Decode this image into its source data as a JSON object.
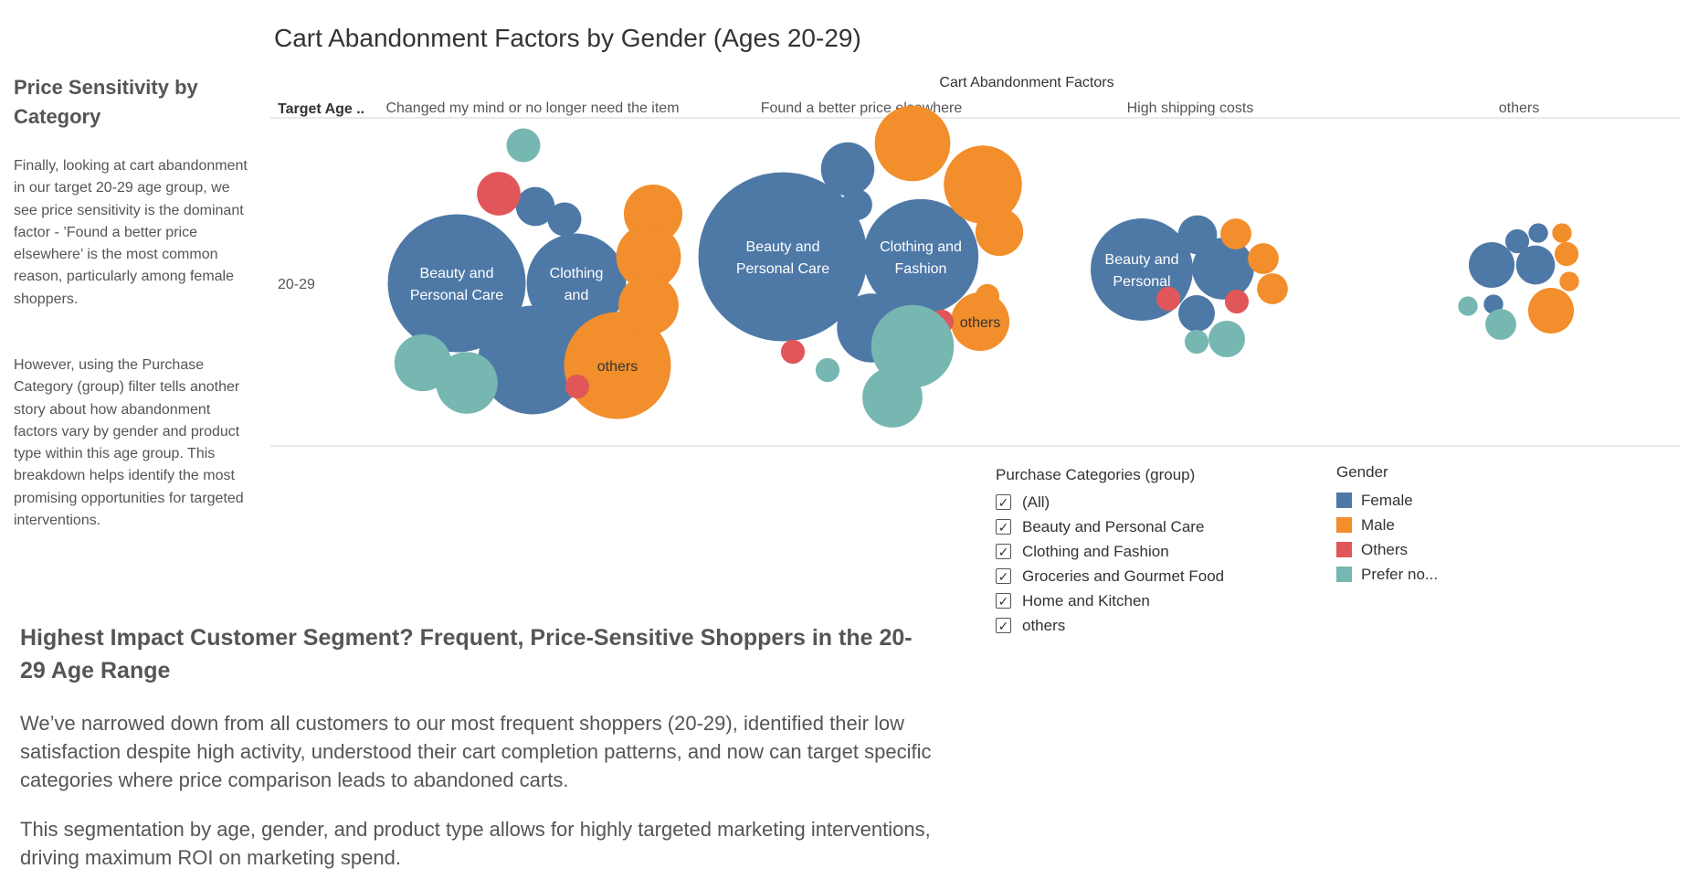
{
  "left_panel": {
    "title": "Price Sensitivity by Category",
    "paragraph1": "Finally, looking at cart abandonment in our target 20-29 age group, we see price sensitivity is the dominant factor - ’Found a better price elsewhere’ is the most common reason, particularly among female shoppers.",
    "paragraph2": "However, using the Purchase Category (group)  filter tells another story about how abandonment factors vary by gender and product type within this age group. This breakdown helps identify the most promising opportunities for targeted interventions."
  },
  "bottom": {
    "heading": "Highest Impact Customer Segment? Frequent, Price-Sensitive Shoppers in the 20-29 Age Range",
    "paragraph1": "We’ve narrowed down from all customers to our most frequent shoppers (20-29), identified their low satisfaction despite high activity, understood their cart completion patterns, and now can target specific categories where price comparison leads to abandoned carts.",
    "paragraph2": "This segmentation by age, gender, and product type allows for highly targeted marketing interventions, driving maximum ROI on marketing spend."
  },
  "filter": {
    "title": "Purchase Categories (group)",
    "items": [
      {
        "label": "(All)",
        "checked": true
      },
      {
        "label": "Beauty and Personal Care",
        "checked": true
      },
      {
        "label": "Clothing and Fashion",
        "checked": true
      },
      {
        "label": "Groceries and Gourmet Food",
        "checked": true
      },
      {
        "label": "Home and Kitchen",
        "checked": true
      },
      {
        "label": "others",
        "checked": true
      }
    ]
  },
  "gender_legend": {
    "title": "Gender",
    "items": [
      {
        "label": "Female",
        "color": "#4e79a7"
      },
      {
        "label": "Male",
        "color": "#f28e2b"
      },
      {
        "label": "Others",
        "color": "#e15759"
      },
      {
        "label": "Prefer no...",
        "color": "#76b7b2"
      }
    ]
  },
  "chart_data": {
    "type": "packed-bubble",
    "title": "Cart Abandonment Factors by Gender (Ages 20-29)",
    "column_header": "Cart Abandonment Factors",
    "row_header": "Target Age ..",
    "row_label": "20-29",
    "colors": {
      "female": "#4e79a7",
      "male": "#f28e2b",
      "others": "#e15759",
      "prefer_not": "#76b7b2"
    },
    "factors": [
      {
        "name": "Changed my mind or no longer need the item",
        "bubbles": [
          {
            "gender": "female",
            "value": 100,
            "label": "Beauty and Personal Care"
          },
          {
            "gender": "female",
            "value": 52,
            "label": "Clothing and"
          },
          {
            "gender": "female",
            "value": 62,
            "label": ""
          },
          {
            "gender": "female",
            "value": 8,
            "label": ""
          },
          {
            "gender": "female",
            "value": 6,
            "label": ""
          },
          {
            "gender": "male",
            "value": 60,
            "label": "others"
          },
          {
            "gender": "male",
            "value": 18,
            "label": ""
          },
          {
            "gender": "male",
            "value": 22,
            "label": ""
          },
          {
            "gender": "male",
            "value": 19,
            "label": ""
          },
          {
            "gender": "others",
            "value": 10,
            "label": ""
          },
          {
            "gender": "others",
            "value": 3,
            "label": ""
          },
          {
            "gender": "prefer_not",
            "value": 17,
            "label": ""
          },
          {
            "gender": "prefer_not",
            "value": 20,
            "label": ""
          },
          {
            "gender": "prefer_not",
            "value": 6,
            "label": ""
          }
        ]
      },
      {
        "name": "Found a better price elsewhere",
        "bubbles": [
          {
            "gender": "female",
            "value": 150,
            "label": "Beauty and Personal Care"
          },
          {
            "gender": "female",
            "value": 70,
            "label": "Clothing and Fashion"
          },
          {
            "gender": "female",
            "value": 25,
            "label": ""
          },
          {
            "gender": "female",
            "value": 15,
            "label": ""
          },
          {
            "gender": "female",
            "value": 5,
            "label": ""
          },
          {
            "gender": "male",
            "value": 30,
            "label": ""
          },
          {
            "gender": "male",
            "value": 32,
            "label": ""
          },
          {
            "gender": "male",
            "value": 12,
            "label": ""
          },
          {
            "gender": "male",
            "value": 18,
            "label": "others"
          },
          {
            "gender": "male",
            "value": 3,
            "label": ""
          },
          {
            "gender": "others",
            "value": 3,
            "label": ""
          },
          {
            "gender": "others",
            "value": 3,
            "label": ""
          },
          {
            "gender": "others",
            "value": 3,
            "label": ""
          },
          {
            "gender": "prefer_not",
            "value": 36,
            "label": ""
          },
          {
            "gender": "prefer_not",
            "value": 19,
            "label": ""
          },
          {
            "gender": "prefer_not",
            "value": 3,
            "label": ""
          }
        ]
      },
      {
        "name": "High shipping costs",
        "bubbles": [
          {
            "gender": "female",
            "value": 55,
            "label": "Beauty and Personal"
          },
          {
            "gender": "female",
            "value": 20,
            "label": ""
          },
          {
            "gender": "female",
            "value": 8,
            "label": ""
          },
          {
            "gender": "female",
            "value": 7,
            "label": ""
          },
          {
            "gender": "male",
            "value": 5,
            "label": ""
          },
          {
            "gender": "male",
            "value": 5,
            "label": ""
          },
          {
            "gender": "male",
            "value": 5,
            "label": ""
          },
          {
            "gender": "others",
            "value": 3,
            "label": ""
          },
          {
            "gender": "others",
            "value": 3,
            "label": ""
          },
          {
            "gender": "prefer_not",
            "value": 7,
            "label": ""
          },
          {
            "gender": "prefer_not",
            "value": 3,
            "label": ""
          }
        ]
      },
      {
        "name": "others",
        "bubbles": [
          {
            "gender": "female",
            "value": 11,
            "label": ""
          },
          {
            "gender": "female",
            "value": 8,
            "label": ""
          },
          {
            "gender": "female",
            "value": 3,
            "label": ""
          },
          {
            "gender": "female",
            "value": 2,
            "label": ""
          },
          {
            "gender": "female",
            "value": 2,
            "label": ""
          },
          {
            "gender": "male",
            "value": 11,
            "label": ""
          },
          {
            "gender": "male",
            "value": 3,
            "label": ""
          },
          {
            "gender": "male",
            "value": 2,
            "label": ""
          },
          {
            "gender": "male",
            "value": 2,
            "label": ""
          },
          {
            "gender": "prefer_not",
            "value": 5,
            "label": ""
          },
          {
            "gender": "prefer_not",
            "value": 2,
            "label": ""
          }
        ]
      }
    ]
  }
}
